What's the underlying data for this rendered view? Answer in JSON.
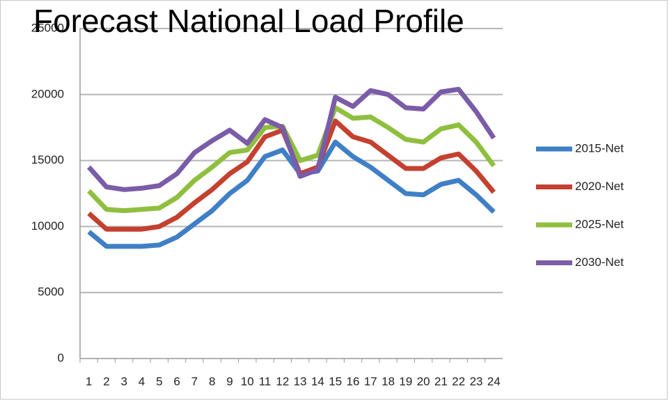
{
  "chart_data": {
    "type": "line",
    "title": "Forecast National Load Profile",
    "categories": [
      "1",
      "2",
      "3",
      "4",
      "5",
      "6",
      "7",
      "8",
      "9",
      "10",
      "11",
      "12",
      "13",
      "14",
      "15",
      "16",
      "17",
      "18",
      "19",
      "20",
      "21",
      "22",
      "23",
      "24"
    ],
    "series": [
      {
        "name": "2015-Net",
        "color": "#3f7fc6",
        "values": [
          9600,
          8500,
          8500,
          8500,
          8600,
          9200,
          10200,
          11200,
          12500,
          13500,
          15300,
          15800,
          14000,
          14200,
          16400,
          15300,
          14500,
          13500,
          12500,
          12400,
          13200,
          13500,
          12400,
          11100
        ]
      },
      {
        "name": "2020-Net",
        "color": "#c4402f",
        "values": [
          11000,
          9800,
          9800,
          9800,
          10000,
          10700,
          11800,
          12800,
          14000,
          14900,
          16800,
          17300,
          14000,
          14500,
          18000,
          16800,
          16400,
          15400,
          14400,
          14400,
          15200,
          15500,
          14200,
          12600
        ]
      },
      {
        "name": "2025-Net",
        "color": "#8fbf3f",
        "values": [
          12700,
          11300,
          11200,
          11300,
          11400,
          12200,
          13500,
          14500,
          15600,
          15800,
          17500,
          17600,
          15000,
          15400,
          19000,
          18200,
          18300,
          17500,
          16600,
          16400,
          17400,
          17700,
          16400,
          14600
        ]
      },
      {
        "name": "2030-Net",
        "color": "#7a5ca8",
        "values": [
          14500,
          13000,
          12800,
          12900,
          13100,
          14000,
          15600,
          16500,
          17300,
          16300,
          18100,
          17500,
          13800,
          14300,
          19800,
          19100,
          20300,
          20000,
          19000,
          18900,
          20200,
          20400,
          18700,
          16700
        ]
      }
    ],
    "ylim": [
      0,
      25000
    ],
    "yticks": [
      0,
      5000,
      10000,
      15000,
      20000,
      25000
    ],
    "grid": true
  }
}
